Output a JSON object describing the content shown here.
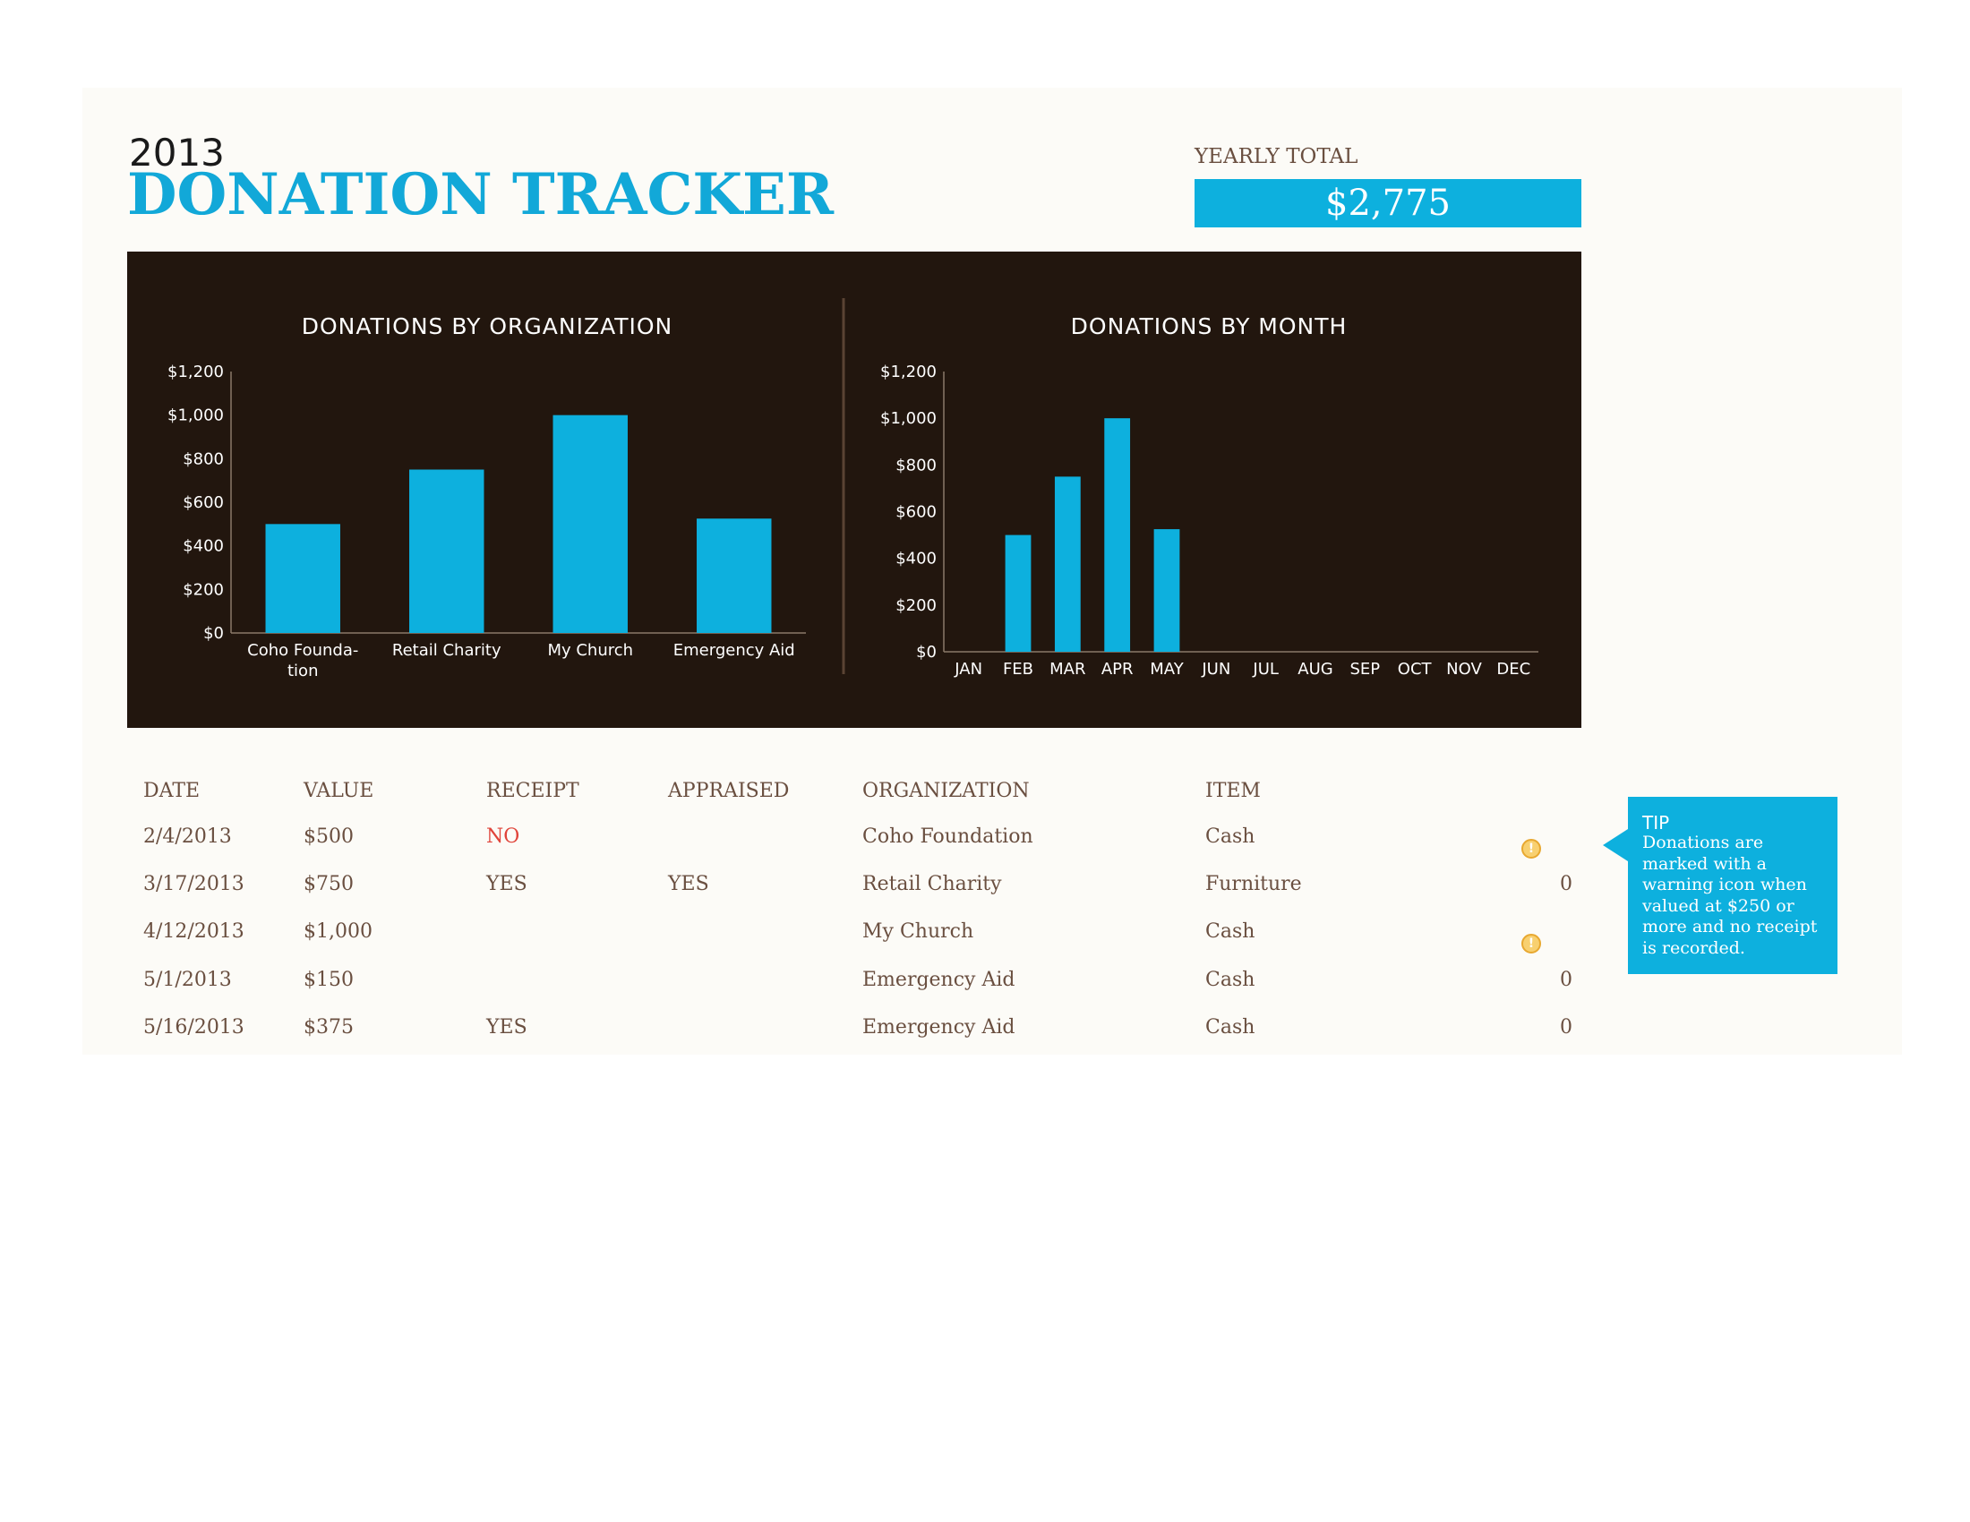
{
  "header": {
    "year": "2013",
    "title": "DONATION TRACKER",
    "yearly_total_label": "YEARLY TOTAL",
    "yearly_total_value": "$2,775"
  },
  "colors": {
    "accent": "#0db0de",
    "title": "#12a8d8",
    "panel_bg": "#22160e",
    "text": "#6a4f40",
    "alert": "#e0443a",
    "warning_icon": "#f8d070"
  },
  "chart_data": [
    {
      "type": "bar",
      "title": "DONATIONS BY ORGANIZATION",
      "categories": [
        "Coho Foundation",
        "Retail Charity",
        "My Church",
        "Emergency Aid"
      ],
      "category_label_lines": [
        [
          "Coho Founda-",
          "tion"
        ],
        [
          "Retail Charity"
        ],
        [
          "My Church"
        ],
        [
          "Emergency Aid"
        ]
      ],
      "values": [
        500,
        750,
        1000,
        525
      ],
      "ylim": [
        0,
        1200
      ],
      "yticks": [
        0,
        200,
        400,
        600,
        800,
        1000,
        1200
      ],
      "ytick_labels": [
        "$0",
        "$200",
        "$400",
        "$600",
        "$800",
        "$1,000",
        "$1,200"
      ],
      "grid": false,
      "legend": "none"
    },
    {
      "type": "bar",
      "title": "DONATIONS BY MONTH",
      "categories": [
        "JAN",
        "FEB",
        "MAR",
        "APR",
        "MAY",
        "JUN",
        "JUL",
        "AUG",
        "SEP",
        "OCT",
        "NOV",
        "DEC"
      ],
      "values": [
        0,
        500,
        750,
        1000,
        525,
        0,
        0,
        0,
        0,
        0,
        0,
        0
      ],
      "ylim": [
        0,
        1200
      ],
      "yticks": [
        0,
        200,
        400,
        600,
        800,
        1000,
        1200
      ],
      "ytick_labels": [
        "$0",
        "$200",
        "$400",
        "$600",
        "$800",
        "$1,000",
        "$1,200"
      ],
      "grid": false,
      "legend": "none"
    }
  ],
  "table": {
    "headers": [
      "DATE",
      "VALUE",
      "RECEIPT",
      "APPRAISED",
      "ORGANIZATION",
      "ITEM"
    ],
    "rows": [
      {
        "date": "2/4/2013",
        "value": "$500",
        "receipt": "NO",
        "appraised": "",
        "organization": "Coho Foundation",
        "item": "Cash",
        "flag": "",
        "warning": true
      },
      {
        "date": "3/17/2013",
        "value": "$750",
        "receipt": "YES",
        "appraised": "YES",
        "organization": "Retail Charity",
        "item": "Furniture",
        "flag": "0",
        "warning": false
      },
      {
        "date": "4/12/2013",
        "value": "$1,000",
        "receipt": "",
        "appraised": "",
        "organization": "My Church",
        "item": "Cash",
        "flag": "",
        "warning": true
      },
      {
        "date": "5/1/2013",
        "value": "$150",
        "receipt": "",
        "appraised": "",
        "organization": "Emergency Aid",
        "item": "Cash",
        "flag": "0",
        "warning": false
      },
      {
        "date": "5/16/2013",
        "value": "$375",
        "receipt": "YES",
        "appraised": "",
        "organization": "Emergency Aid",
        "item": "Cash",
        "flag": "0",
        "warning": false
      }
    ]
  },
  "tip": {
    "title": "TIP",
    "lines": [
      "Donations are",
      "marked with a",
      "warning  icon when",
      "valued at $250 or",
      "more and no receipt",
      "is recorded."
    ]
  }
}
